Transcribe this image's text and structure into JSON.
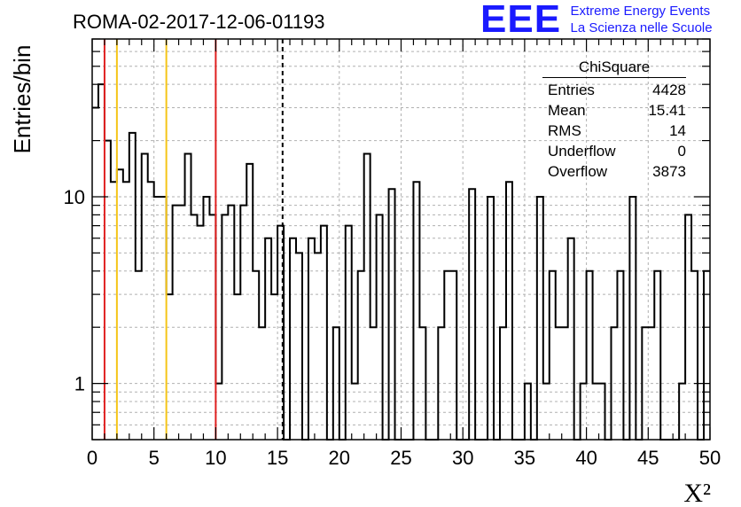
{
  "title": "ROMA-02-2017-12-06-01193",
  "logo": {
    "mark": "EEE",
    "line1": "Extreme Energy Events",
    "line2": "La Scienza nelle Scuole",
    "color": "#1a1aff"
  },
  "stats": {
    "name": "ChiSquare",
    "rows": [
      {
        "label": "Entries",
        "value": "4428"
      },
      {
        "label": "Mean",
        "value": "15.41"
      },
      {
        "label": "RMS",
        "value": "14"
      },
      {
        "label": "Underflow",
        "value": "0"
      },
      {
        "label": "Overflow",
        "value": "3873"
      }
    ]
  },
  "chart_data": {
    "type": "histogram",
    "xlabel": "X²",
    "ylabel": "Entries/bin",
    "xlim": [
      0,
      50
    ],
    "ylim": [
      0.5,
      70
    ],
    "yscale": "log",
    "grid": true,
    "bin_width": 0.5,
    "x_ticks": [
      "0",
      "5",
      "10",
      "15",
      "20",
      "25",
      "30",
      "35",
      "40",
      "45",
      "50"
    ],
    "y_ticks": [
      "1",
      "10"
    ],
    "values": [
      30,
      40,
      20,
      12,
      14,
      12,
      22,
      4,
      17,
      12,
      10,
      10,
      3,
      9,
      9,
      17,
      8,
      7,
      10,
      8,
      1,
      8,
      9,
      3,
      9,
      15,
      4,
      2,
      6,
      3,
      7,
      0,
      6,
      5,
      0,
      6,
      5,
      7,
      0,
      2,
      0,
      7,
      1,
      4,
      17,
      2,
      8,
      0,
      11,
      0,
      0,
      0,
      12,
      2,
      0,
      0,
      2,
      4,
      4,
      0,
      0,
      11,
      0,
      0,
      10,
      0,
      2,
      12,
      0,
      0,
      1,
      0,
      10,
      1,
      4,
      2,
      2,
      6,
      0,
      1,
      4,
      1,
      1,
      0,
      2,
      4,
      0,
      10,
      0,
      2,
      2,
      4,
      0,
      0,
      0,
      1,
      8,
      4,
      0,
      4
    ],
    "lines": [
      {
        "x": 1,
        "color": "#e02020",
        "style": "solid"
      },
      {
        "x": 2,
        "color": "#f5c518",
        "style": "solid"
      },
      {
        "x": 6,
        "color": "#f5c518",
        "style": "solid"
      },
      {
        "x": 10,
        "color": "#e02020",
        "style": "solid"
      },
      {
        "x": 15.41,
        "color": "#000000",
        "style": "dashed"
      }
    ]
  }
}
